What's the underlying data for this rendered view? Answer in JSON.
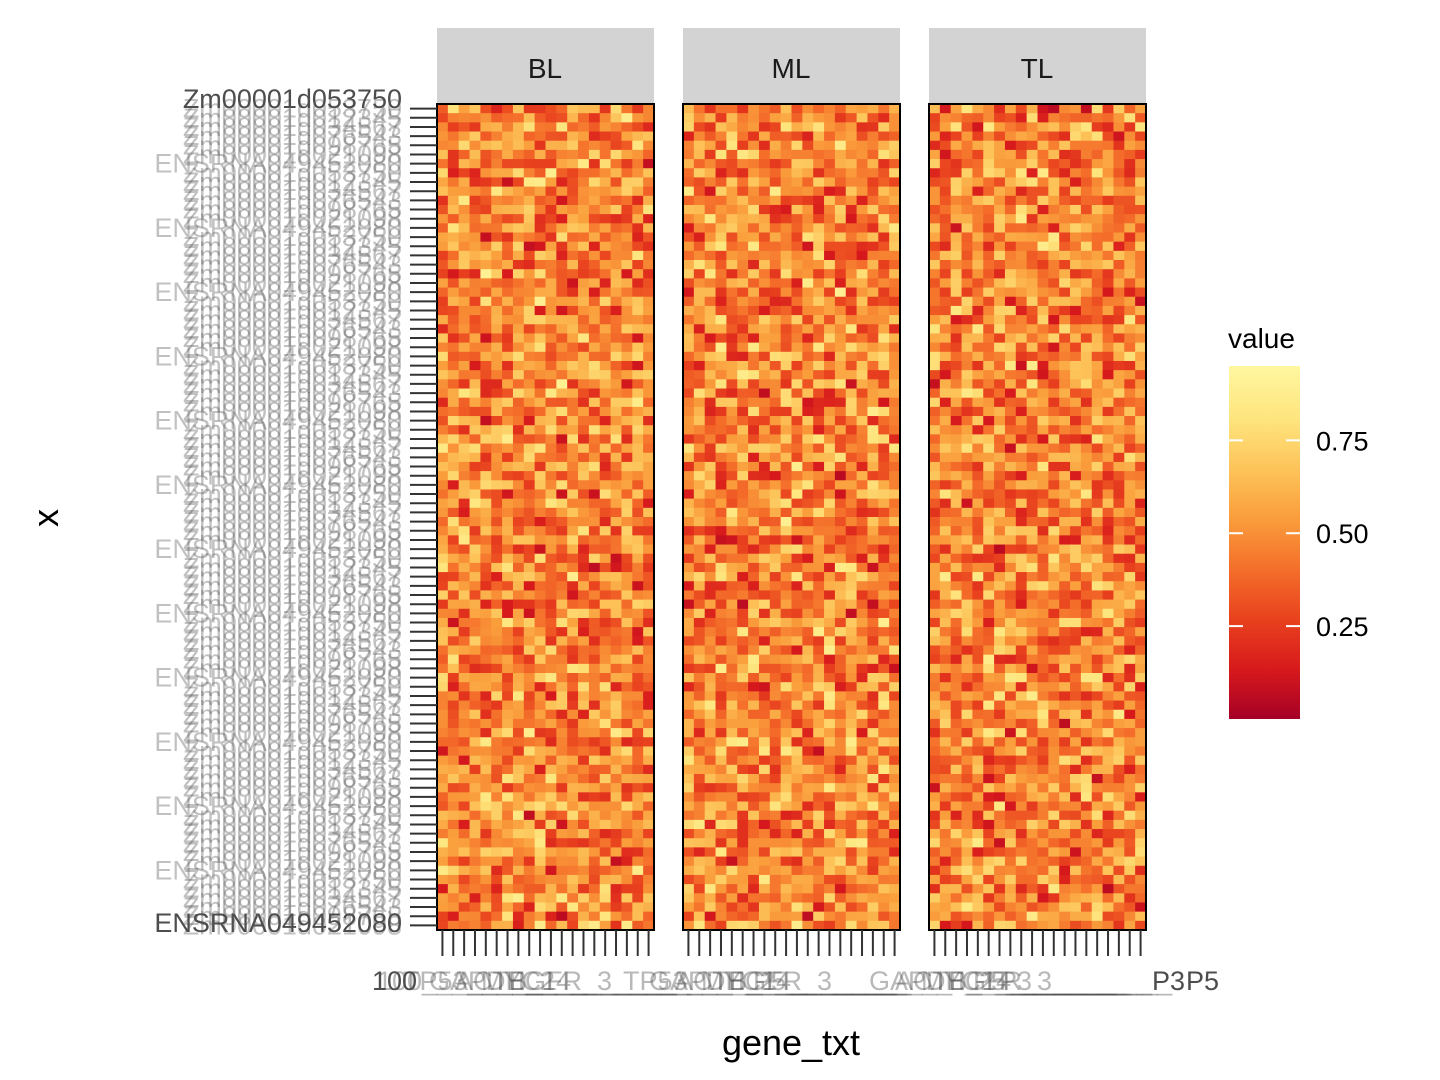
{
  "chart_data": {
    "type": "heatmap",
    "xlabel": "gene_txt",
    "ylabel": "x",
    "facets": [
      "BL",
      "ML",
      "TL"
    ],
    "columns_per_facet": 20,
    "rows": 90,
    "colorscale": {
      "name": "YlOrRd (reversed)",
      "low": "#A50026",
      "high": "#FFF7A0",
      "stops": [
        "#A50026",
        "#D7191C",
        "#E8411E",
        "#F46D2A",
        "#FA9E3C",
        "#FDC45A",
        "#FEE57E",
        "#FFF7A0"
      ]
    },
    "legend": {
      "title": "value",
      "placement": "right",
      "ticks": [
        0.25,
        0.5,
        0.75
      ],
      "tick_labels": [
        "0.25",
        "0.50",
        "0.75"
      ],
      "range": [
        0.0,
        0.95
      ]
    },
    "y_tick_labels_visible": [
      "Zm00001d053750",
      "ENSRNA049452080"
    ],
    "x_tick_labels_visible": [
      "100",
      "P5",
      "P3"
    ],
    "grid": false
  }
}
